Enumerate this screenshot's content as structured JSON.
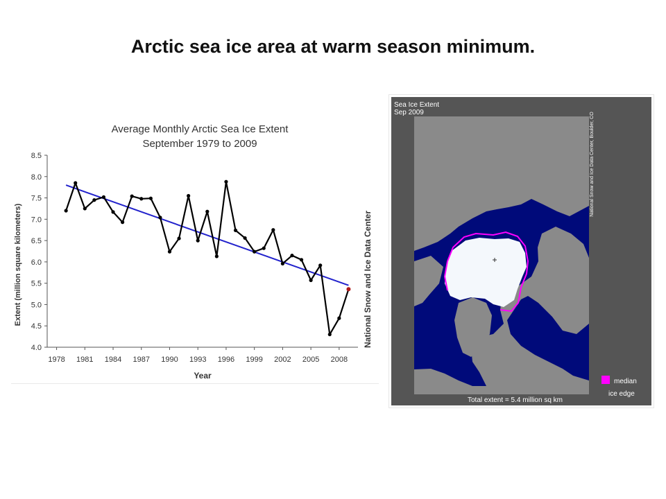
{
  "slide_title": "Arctic sea ice area at warm season minimum.",
  "chart_data": {
    "type": "line",
    "title": "Average Monthly Arctic Sea Ice Extent",
    "subtitle": "September 1979 to 2009",
    "xlabel": "Year",
    "ylabel": "Extent (million square kilometers)",
    "side_label": "National Snow and Ice Data Center",
    "xlim": [
      1977,
      2010
    ],
    "ylim": [
      4.0,
      8.5
    ],
    "x_ticks": [
      "1978",
      "1981",
      "1984",
      "1987",
      "1990",
      "1993",
      "1996",
      "1999",
      "2002",
      "2005",
      "2008"
    ],
    "y_ticks": [
      "4.0",
      "4.5",
      "5.0",
      "5.5",
      "6.0",
      "6.5",
      "7.0",
      "7.5",
      "8.0",
      "8.5"
    ],
    "grid": false,
    "series": [
      {
        "color": "#000000",
        "x": [
          1979,
          1980,
          1981,
          1982,
          1983,
          1984,
          1985,
          1986,
          1987,
          1988,
          1989,
          1990,
          1991,
          1992,
          1993,
          1994,
          1995,
          1996,
          1997,
          1998,
          1999,
          2000,
          2001,
          2002,
          2003,
          2004,
          2005,
          2006,
          2007,
          2008,
          2009
        ],
        "y": [
          7.2,
          7.85,
          7.25,
          7.45,
          7.52,
          7.17,
          6.93,
          7.54,
          7.48,
          7.49,
          7.04,
          6.24,
          6.55,
          7.55,
          6.5,
          7.18,
          6.13,
          7.88,
          6.74,
          6.56,
          6.24,
          6.32,
          6.75,
          5.96,
          6.15,
          6.05,
          5.57,
          5.92,
          4.3,
          4.68,
          5.36
        ]
      },
      {
        "color": "#2222cc",
        "trend": true,
        "x": [
          1979,
          2009
        ],
        "y": [
          7.8,
          5.45
        ]
      }
    ],
    "highlight_point": {
      "x": 2009,
      "y": 5.36,
      "color": "#b01818"
    }
  },
  "map": {
    "title_line1": "Sea Ice Extent",
    "title_line2": "Sep 2009",
    "credit": "National Snow and Ice Data Center, Boulder, CO",
    "legend_label_1": "median",
    "legend_label_2": "ice edge",
    "total_label": "Total extent =  5.4 million sq km",
    "colors": {
      "ocean": "#000a7a",
      "land": "#8a8a8a",
      "ice": "#f4f8fc",
      "median_edge": "#ff00ff",
      "frame": "#555555"
    }
  }
}
